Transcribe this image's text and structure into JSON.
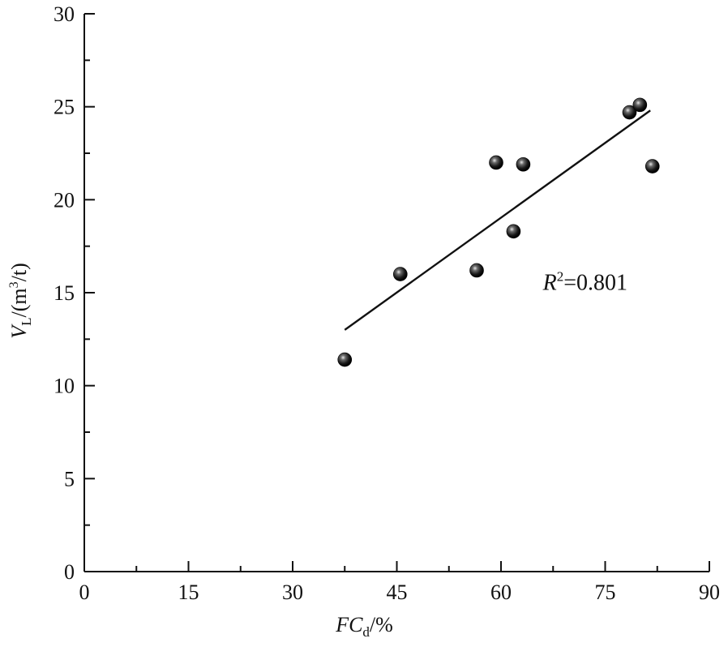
{
  "chart_data": {
    "type": "scatter",
    "title": "",
    "xlabel": {
      "main": "FC",
      "sub": "d",
      "unit": "/%"
    },
    "ylabel": {
      "main": "V",
      "sub": "L",
      "unit_pre": "/(m",
      "unit_sup": "3",
      "unit_post": "/t)"
    },
    "xlim": [
      0,
      90
    ],
    "ylim": [
      0,
      30
    ],
    "xticks": [
      0,
      15,
      30,
      45,
      60,
      75,
      90
    ],
    "yticks": [
      0,
      5,
      10,
      15,
      20,
      25,
      30
    ],
    "x_minor_step": 7.5,
    "y_minor_step": 2.5,
    "series": [
      {
        "points": [
          {
            "x": 37.5,
            "y": 11.4
          },
          {
            "x": 45.5,
            "y": 16.0
          },
          {
            "x": 56.5,
            "y": 16.2
          },
          {
            "x": 59.3,
            "y": 22.0
          },
          {
            "x": 61.8,
            "y": 18.3
          },
          {
            "x": 63.2,
            "y": 21.9
          },
          {
            "x": 78.5,
            "y": 24.7
          },
          {
            "x": 80.0,
            "y": 25.1
          },
          {
            "x": 81.8,
            "y": 21.8
          }
        ]
      }
    ],
    "fit_line": {
      "x": [
        37.5,
        81.5
      ],
      "y": [
        13.0,
        24.8
      ]
    },
    "annotation": {
      "symbol": "R",
      "sup": "2",
      "text": "=0.801",
      "x": 70.0,
      "y": 15.5
    },
    "grid": false,
    "legend": "none"
  }
}
